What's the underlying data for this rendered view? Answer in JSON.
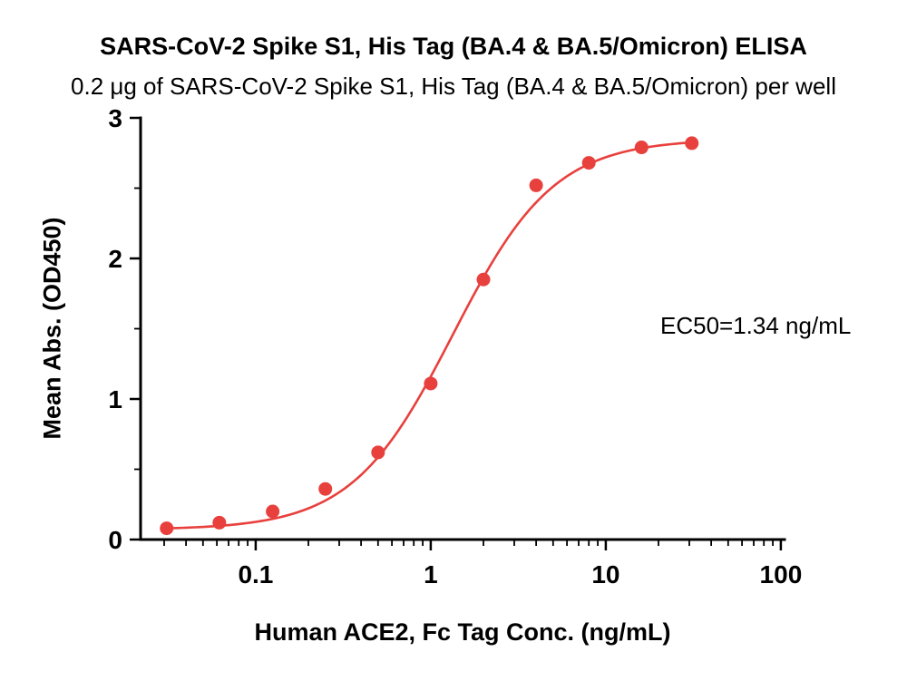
{
  "chart_data": {
    "type": "scatter",
    "title": "SARS-CoV-2 Spike S1, His Tag (BA.4 & BA.5/Omicron) ELISA",
    "subtitle": "0.2 μg of SARS-CoV-2 Spike S1, His Tag (BA.4 & BA.5/Omicron) per well",
    "xlabel": "Human ACE2, Fc Tag Conc. (ng/mL)",
    "ylabel": "Mean Abs. (OD450)",
    "annotation": "EC50=1.34 ng/mL",
    "xscale": "log",
    "xlim": [
      0.022,
      105
    ],
    "ylim": [
      0,
      3
    ],
    "x": [
      0.031,
      0.062,
      0.125,
      0.25,
      0.5,
      1,
      2,
      4,
      8,
      16,
      31
    ],
    "y": [
      0.08,
      0.12,
      0.2,
      0.36,
      0.62,
      1.11,
      1.85,
      2.52,
      2.68,
      2.79,
      2.82
    ],
    "x_major_ticks": [
      0.1,
      1,
      10,
      100
    ],
    "x_major_labels": [
      "0.1",
      "1",
      "10",
      "100"
    ],
    "y_major_ticks": [
      0,
      1,
      2,
      3
    ],
    "y_major_labels": [
      "0",
      "1",
      "2",
      "3"
    ],
    "y_minor_ticks": [
      0.5,
      1.5,
      2.5
    ],
    "fit": {
      "model": "4PL",
      "bottom": 0.07,
      "top": 2.85,
      "ec50": 1.34,
      "hill": 1.5
    },
    "point_color": "#E8403D",
    "line_color": "#E8403D",
    "axis_color": "#000000",
    "grid": "off",
    "legend": "none"
  }
}
